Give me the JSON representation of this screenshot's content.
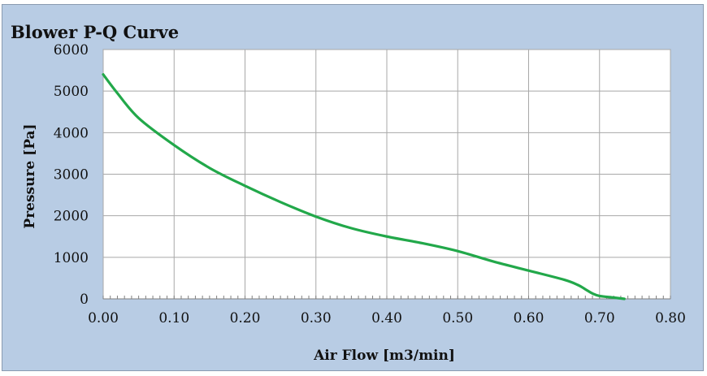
{
  "chart_data": {
    "type": "line",
    "title": "Blower P-Q Curve",
    "xlabel": "Air Flow [m3/min]",
    "ylabel": "Pressure [Pa]",
    "xlim": [
      0,
      0.8
    ],
    "ylim": [
      0,
      6000
    ],
    "x_ticks": [
      "0.00",
      "0.10",
      "0.20",
      "0.30",
      "0.40",
      "0.50",
      "0.60",
      "0.70",
      "0.80"
    ],
    "y_ticks": [
      "0",
      "1000",
      "2000",
      "3000",
      "4000",
      "5000",
      "6000"
    ],
    "grid": true,
    "series": [
      {
        "color": "#22a84a",
        "x": [
          0.0,
          0.02,
          0.05,
          0.1,
          0.15,
          0.2,
          0.25,
          0.3,
          0.35,
          0.4,
          0.45,
          0.5,
          0.55,
          0.6,
          0.65,
          0.67,
          0.68,
          0.69,
          0.7,
          0.72,
          0.735
        ],
        "y": [
          5400,
          4950,
          4350,
          3700,
          3150,
          2720,
          2330,
          1980,
          1700,
          1500,
          1340,
          1150,
          900,
          680,
          460,
          330,
          230,
          130,
          70,
          30,
          0
        ]
      }
    ]
  }
}
